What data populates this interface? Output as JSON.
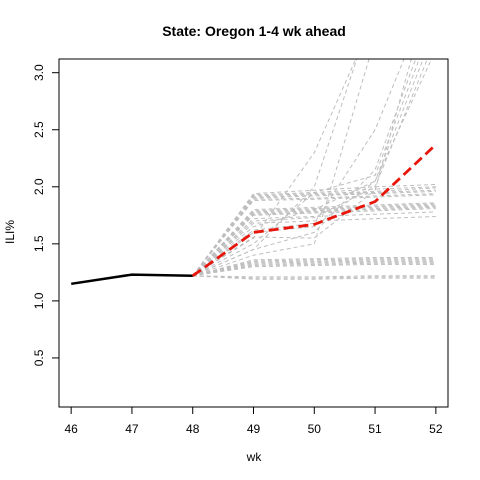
{
  "chart_data": {
    "type": "line",
    "title": "State: Oregon 1-4 wk ahead",
    "xlabel": "wk",
    "ylabel": "ILI%",
    "xlim": [
      45.8,
      52.2
    ],
    "ylim": [
      0.07,
      3.12
    ],
    "xticks": [
      46,
      47,
      48,
      49,
      50,
      51,
      52
    ],
    "yticks": [
      0.5,
      1.0,
      1.5,
      2.0,
      2.5,
      3.0
    ],
    "ytick_labels": [
      "0.5",
      "1.0",
      "1.5",
      "2.0",
      "2.5",
      "3.0"
    ],
    "grid": false,
    "colors": {
      "observed": "#000000",
      "forecast_mean": "#e8150b",
      "forecast_samples": "#bebebe"
    },
    "observed": {
      "x": [
        46,
        47,
        48
      ],
      "y": [
        1.15,
        1.23,
        1.22
      ]
    },
    "forecast_mean": {
      "x": [
        48,
        49,
        50,
        51,
        52
      ],
      "y": [
        1.22,
        1.6,
        1.67,
        1.87,
        2.37
      ]
    },
    "forecast_samples": {
      "x": [
        48,
        49,
        50,
        51,
        52
      ],
      "trajectories": [
        [
          1.22,
          1.94,
          1.97,
          2.0,
          2.02
        ],
        [
          1.22,
          1.93,
          1.95,
          1.98,
          2.0
        ],
        [
          1.22,
          1.92,
          1.94,
          1.96,
          1.99
        ],
        [
          1.22,
          1.91,
          1.93,
          1.95,
          1.97
        ],
        [
          1.22,
          1.9,
          1.92,
          1.94,
          1.96
        ],
        [
          1.22,
          1.89,
          1.9,
          1.92,
          1.94
        ],
        [
          1.22,
          1.88,
          1.89,
          1.91,
          1.93
        ],
        [
          1.22,
          1.8,
          1.82,
          1.84,
          1.86
        ],
        [
          1.22,
          1.79,
          1.81,
          1.83,
          1.85
        ],
        [
          1.22,
          1.78,
          1.8,
          1.82,
          1.84
        ],
        [
          1.22,
          1.77,
          1.79,
          1.81,
          1.83
        ],
        [
          1.22,
          1.76,
          1.78,
          1.8,
          1.82
        ],
        [
          1.22,
          1.75,
          1.77,
          1.79,
          1.81
        ],
        [
          1.22,
          1.72,
          1.74,
          1.76,
          1.78
        ],
        [
          1.22,
          1.68,
          1.7,
          1.72,
          1.74
        ],
        [
          1.22,
          1.36,
          1.37,
          1.38,
          1.38
        ],
        [
          1.22,
          1.35,
          1.36,
          1.37,
          1.37
        ],
        [
          1.22,
          1.34,
          1.35,
          1.36,
          1.36
        ],
        [
          1.22,
          1.33,
          1.34,
          1.35,
          1.35
        ],
        [
          1.22,
          1.32,
          1.33,
          1.34,
          1.34
        ],
        [
          1.22,
          1.31,
          1.32,
          1.33,
          1.33
        ],
        [
          1.22,
          1.3,
          1.31,
          1.32,
          1.32
        ],
        [
          1.22,
          1.21,
          1.21,
          1.22,
          1.22
        ],
        [
          1.22,
          1.2,
          1.2,
          1.21,
          1.21
        ],
        [
          1.22,
          1.19,
          1.19,
          1.2,
          1.2
        ],
        [
          1.22,
          1.7,
          1.73,
          2.0,
          3.3
        ],
        [
          1.22,
          1.6,
          1.65,
          2.05,
          3.4
        ],
        [
          1.22,
          1.5,
          1.95,
          2.1,
          3.5
        ],
        [
          1.22,
          1.62,
          1.68,
          2.5,
          3.8
        ],
        [
          1.22,
          1.56,
          1.55,
          1.97,
          3.9
        ],
        [
          1.22,
          1.45,
          1.6,
          2.15,
          3.6
        ],
        [
          1.22,
          1.45,
          2.0,
          3.6,
          4.0
        ],
        [
          1.22,
          1.4,
          1.5,
          3.3,
          4.0
        ],
        [
          1.22,
          1.55,
          2.3,
          3.5,
          4.0
        ],
        [
          1.22,
          1.65,
          1.8,
          2.05,
          3.2
        ]
      ]
    }
  }
}
